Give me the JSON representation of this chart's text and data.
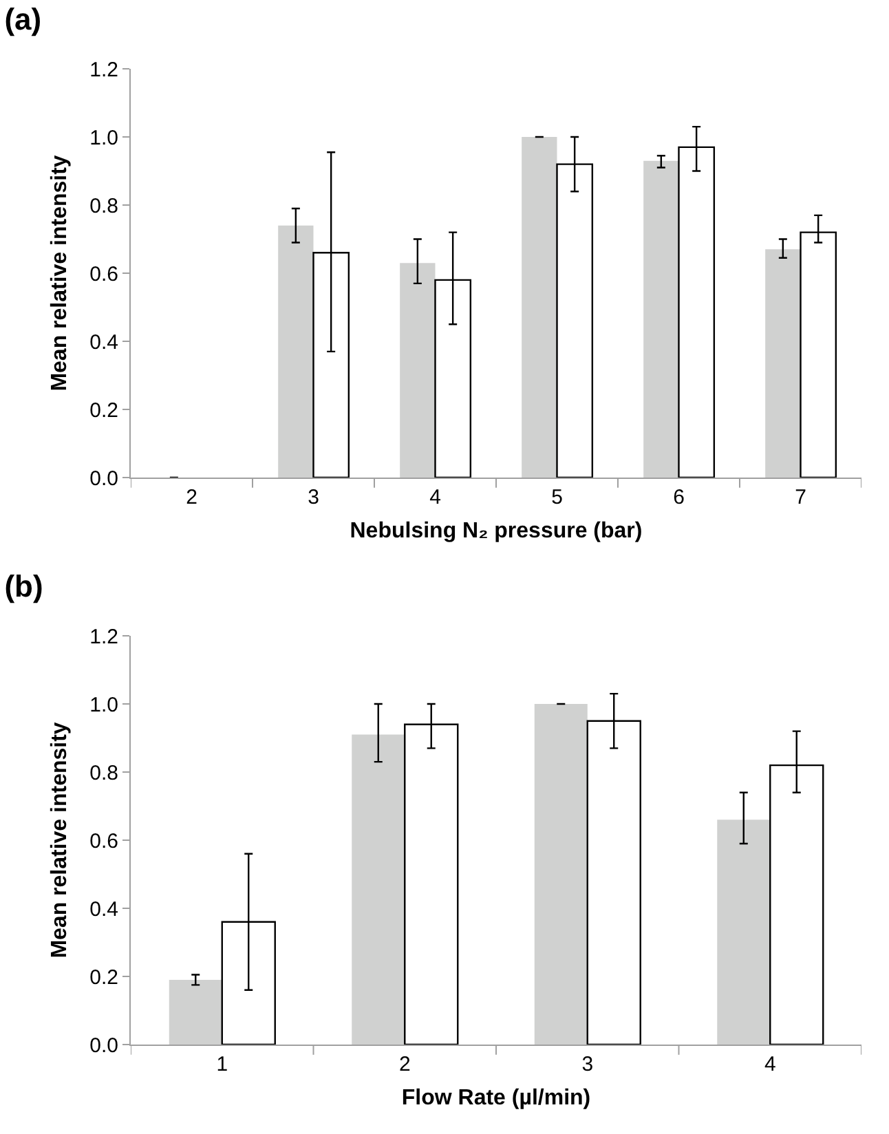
{
  "chart_data": [
    {
      "type": "bar",
      "title": "(a)",
      "xlabel": "Nebulsing N₂ pressure (bar)",
      "ylabel": "Mean relative intensity",
      "categories": [
        "2",
        "3",
        "4",
        "5",
        "6",
        "7"
      ],
      "ylim": [
        0,
        1.2
      ],
      "yticks": [
        {
          "value": 0,
          "label": "0.0"
        },
        {
          "value": 0.2,
          "label": "0.2"
        },
        {
          "value": 0.4,
          "label": "0.4"
        },
        {
          "value": 0.6,
          "label": "0.6"
        },
        {
          "value": 0.8,
          "label": "0.8"
        },
        {
          "value": 1,
          "label": "1.0"
        },
        {
          "value": 1.2,
          "label": "1.2"
        }
      ],
      "grid": false,
      "series": [
        {
          "color": "#d0d1d0",
          "values": [
            0,
            0.74,
            0.63,
            1.0,
            0.93,
            0.67
          ],
          "errors": [
            0,
            [
              0.69,
              0.79
            ],
            [
              0.57,
              0.7
            ],
            0,
            [
              0.91,
              0.945
            ],
            [
              0.645,
              0.7
            ]
          ]
        },
        {
          "color": "#ffffff",
          "values": [
            null,
            0.66,
            0.58,
            0.92,
            0.97,
            0.72
          ],
          "errors": [
            null,
            [
              0.37,
              0.955
            ],
            [
              0.45,
              0.72
            ],
            [
              0.84,
              1.0
            ],
            [
              0.9,
              1.03
            ],
            [
              0.69,
              0.77
            ]
          ]
        }
      ]
    },
    {
      "type": "bar",
      "title": "(b)",
      "xlabel": "Flow Rate (µl/min)",
      "ylabel": "Mean relative intensity",
      "categories": [
        "1",
        "2",
        "3",
        "4"
      ],
      "ylim": [
        0,
        1.2
      ],
      "yticks": [
        {
          "value": 0,
          "label": "0.0"
        },
        {
          "value": 0.2,
          "label": "0.2"
        },
        {
          "value": 0.4,
          "label": "0.4"
        },
        {
          "value": 0.6,
          "label": "0.6"
        },
        {
          "value": 0.8,
          "label": "0.8"
        },
        {
          "value": 1,
          "label": "1.0"
        },
        {
          "value": 1.2,
          "label": "1.2"
        }
      ],
      "grid": false,
      "series": [
        {
          "color": "#d0d1d0",
          "values": [
            0.19,
            0.91,
            1.0,
            0.66
          ],
          "errors": [
            [
              0.175,
              0.205
            ],
            [
              0.83,
              1.0
            ],
            0,
            [
              0.59,
              0.74
            ]
          ]
        },
        {
          "color": "#ffffff",
          "values": [
            0.36,
            0.94,
            0.95,
            0.82
          ],
          "errors": [
            [
              0.16,
              0.56
            ],
            [
              0.87,
              1.0
            ],
            [
              0.87,
              1.03
            ],
            [
              0.74,
              0.92
            ]
          ]
        }
      ]
    }
  ]
}
